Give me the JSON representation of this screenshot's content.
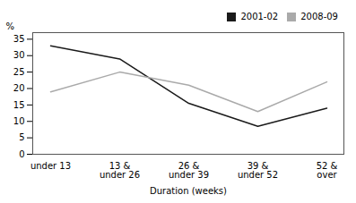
{
  "chart_data": {
    "type": "line",
    "categories": [
      "under 13",
      "13 &\nunder 26",
      "26 &\nunder 39",
      "39 &\nunder 52",
      "52 &\nover"
    ],
    "series": [
      {
        "name": "2001-02",
        "color": "#1a1a1a",
        "values": [
          33,
          29,
          15.5,
          8.5,
          14
        ]
      },
      {
        "name": "2008-09",
        "color": "#aaaaaa",
        "values": [
          19,
          25,
          21,
          13,
          22
        ]
      }
    ],
    "xlabel": "Duration (weeks)",
    "ylabel": "%",
    "ylim": [
      0,
      37
    ],
    "yticks": [
      0,
      5,
      10,
      15,
      20,
      25,
      30,
      35
    ],
    "grid": false,
    "legend": "upper right"
  }
}
